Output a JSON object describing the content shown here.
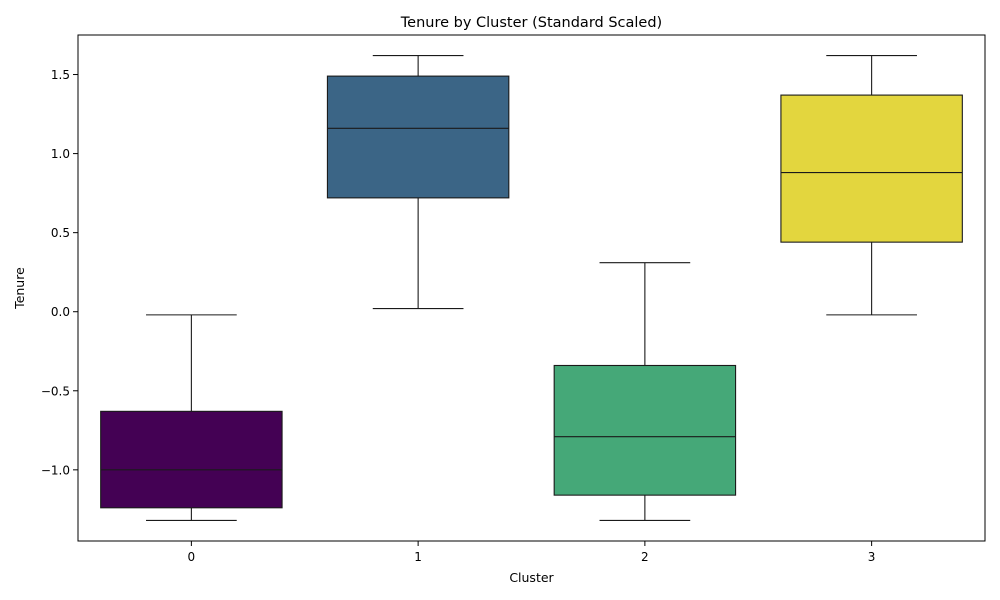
{
  "chart_data": {
    "type": "box",
    "title": "Tenure by Cluster (Standard Scaled)",
    "xlabel": "Cluster",
    "ylabel": "Tenure",
    "ylim": [
      -1.45,
      1.75
    ],
    "yticks": [
      -1.0,
      -0.5,
      0.0,
      0.5,
      1.0,
      1.5
    ],
    "ytick_labels": [
      "−1.0",
      "−0.5",
      "0.0",
      "0.5",
      "1.0",
      "1.5"
    ],
    "grid": false,
    "legend": "none",
    "categories": [
      "0",
      "1",
      "2",
      "3"
    ],
    "boxes": [
      {
        "category": "0",
        "whisker_low": -1.32,
        "q1": -1.24,
        "median": -1.0,
        "q3": -0.63,
        "whisker_high": -0.02,
        "color": "#440154"
      },
      {
        "category": "1",
        "whisker_low": 0.02,
        "q1": 0.72,
        "median": 1.16,
        "q3": 1.49,
        "whisker_high": 1.62,
        "color": "#3b6586"
      },
      {
        "category": "2",
        "whisker_low": -1.32,
        "q1": -1.16,
        "median": -0.79,
        "q3": -0.34,
        "whisker_high": 0.31,
        "color": "#45a878"
      },
      {
        "category": "3",
        "whisker_low": -0.02,
        "q1": 0.44,
        "median": 0.88,
        "q3": 1.37,
        "whisker_high": 1.62,
        "color": "#e3d63e"
      }
    ]
  }
}
